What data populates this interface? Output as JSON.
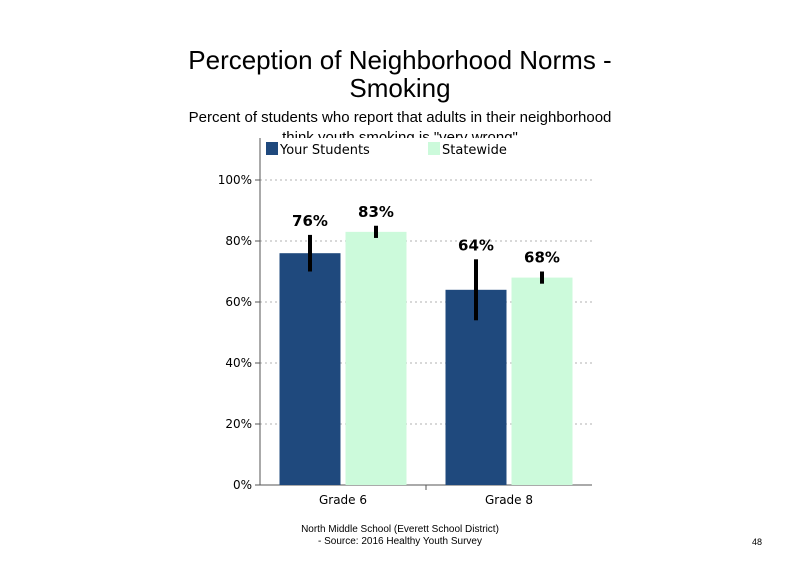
{
  "slide": {
    "title_line1": "Perception of Neighborhood Norms -",
    "title_line2": "Smoking",
    "subtitle_line1": "Percent of students who report that adults in their neighborhood",
    "subtitle_line2": "think youth smoking is \"very wrong\"",
    "footer_line1": "North Middle School (Everett School District)",
    "footer_line2": "- Source: 2016 Healthy Youth Survey",
    "page_number": "48"
  },
  "chart_data": {
    "type": "bar",
    "categories": [
      "Grade 6",
      "Grade 8"
    ],
    "series": [
      {
        "name": "Your Students",
        "color": "#1f497d",
        "values": [
          76,
          64
        ],
        "labels": [
          "76%",
          "64%"
        ],
        "error": [
          [
            70,
            82
          ],
          [
            54,
            74
          ]
        ]
      },
      {
        "name": "Statewide",
        "color": "#ccfadb",
        "values": [
          83,
          68
        ],
        "labels": [
          "83%",
          "68%"
        ],
        "error": [
          [
            81,
            85
          ],
          [
            66,
            70
          ]
        ]
      }
    ],
    "yticks": [
      "0%",
      "20%",
      "40%",
      "60%",
      "80%",
      "100%"
    ],
    "ytick_values": [
      0,
      20,
      40,
      60,
      80,
      100
    ],
    "ylim": [
      0,
      100
    ],
    "grid": "dotted horizontal",
    "legend_position": "top"
  }
}
